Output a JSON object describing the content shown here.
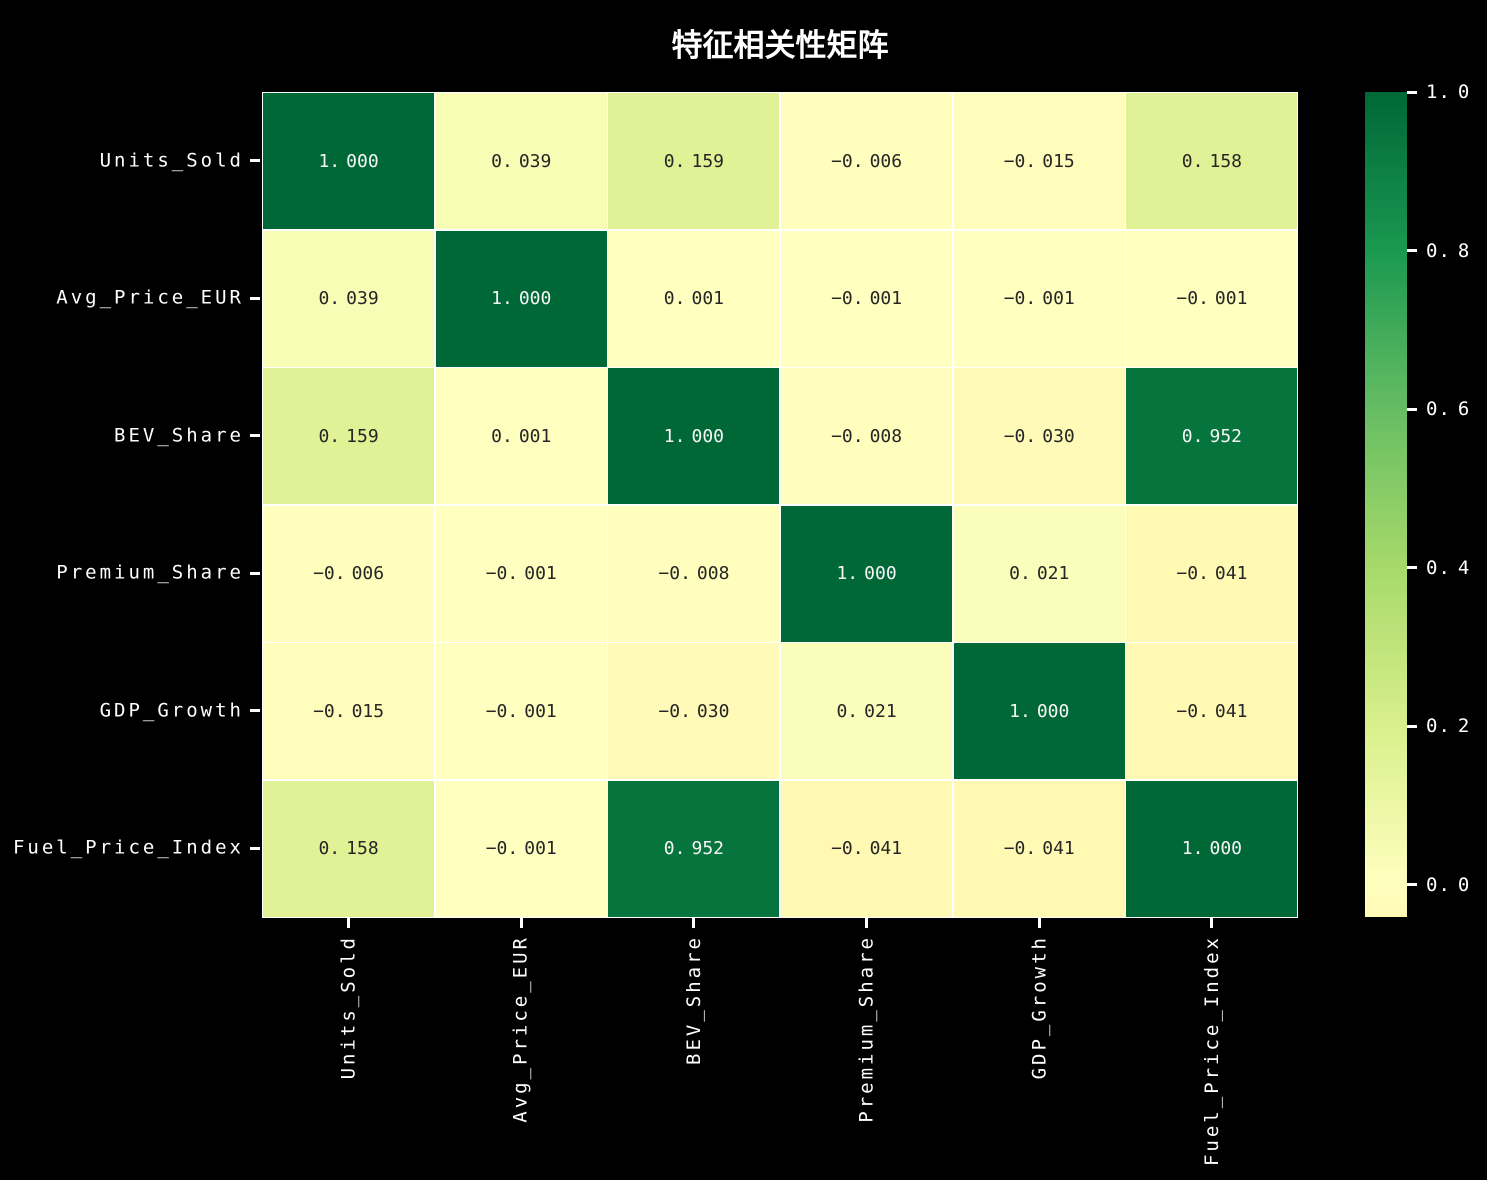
{
  "title": "特征相关性矩阵",
  "chart_data": {
    "type": "heatmap",
    "title": "特征相关性矩阵",
    "labels": [
      "Units_Sold",
      "Avg_Price_EUR",
      "BEV_Share",
      "Premium_Share",
      "GDP_Growth",
      "Fuel_Price_Index"
    ],
    "matrix": [
      [
        1.0,
        0.039,
        0.159,
        -0.006,
        -0.015,
        0.158
      ],
      [
        0.039,
        1.0,
        0.001,
        -0.001,
        -0.001,
        -0.001
      ],
      [
        0.159,
        0.001,
        1.0,
        -0.008,
        -0.03,
        0.952
      ],
      [
        -0.006,
        -0.001,
        -0.008,
        1.0,
        0.021,
        -0.041
      ],
      [
        -0.015,
        -0.001,
        -0.03,
        0.021,
        1.0,
        -0.041
      ],
      [
        0.158,
        -0.001,
        0.952,
        -0.041,
        -0.041,
        1.0
      ]
    ],
    "annotation_decimals": 3,
    "colormap": {
      "name": "RdYlGn",
      "center": 0,
      "vmin": -0.041,
      "vmax": 1.0,
      "anchors": [
        "#a50026",
        "#d73027",
        "#f46d43",
        "#fdae61",
        "#fee08b",
        "#ffffbf",
        "#d9ef8b",
        "#a6d96a",
        "#66bd63",
        "#1a9850",
        "#006837"
      ]
    },
    "colorbar": {
      "ticks": [
        0.0,
        0.2,
        0.4,
        0.6,
        0.8,
        1.0
      ],
      "tick_labels": [
        "0.0",
        "0.2",
        "0.4",
        "0.6",
        "0.8",
        "1.0"
      ]
    },
    "colors": {
      "background": "#000000",
      "axis_text": "#ffffff",
      "grid_line": "#ffffff",
      "annot_dark": "#262626",
      "annot_light": "#f5f5f5"
    },
    "legend_position": "right",
    "grid": false
  }
}
